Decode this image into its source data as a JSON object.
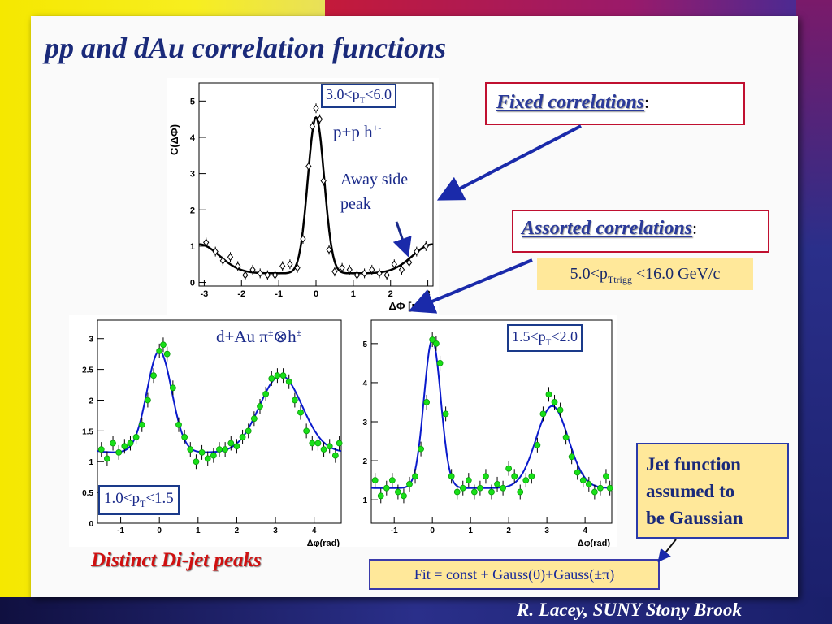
{
  "slide": {
    "title": "pp and dAu correlation functions",
    "fixed_label": "Fixed correlations",
    "fixed_colon": ":",
    "assorted_label": "Assorted correlations",
    "assorted_colon": ":",
    "assorted_range": "5.0<p",
    "assorted_range_sub": "Ttrigg",
    "assorted_range_tail": " <16.0 GeV/c",
    "jet_box": [
      "Jet function",
      "assumed to",
      "be Gaussian"
    ],
    "fit_box": "Fit = const + Gauss(0)+Gauss(±π)",
    "dijet": "Distinct Di-jet peaks",
    "author": "R. Lacey, SUNY  Stony Brook",
    "colors": {
      "title": "#1a2a7a",
      "red": "#c01030",
      "yellow_box": "#ffe89a",
      "fit_blue": "#0a1acc",
      "data_green": "#18e018"
    }
  },
  "chart_data": [
    {
      "id": "pp",
      "type": "scatter",
      "ylabel": "C(ΔΦ)",
      "xlabel": "ΔΦ  [rad]",
      "xlim": [
        -3.14,
        3.14
      ],
      "ylim": [
        -0.1,
        5.5
      ],
      "xticks": [
        -3,
        -2,
        -1,
        0,
        1,
        2,
        3
      ],
      "yticks": [
        0,
        1,
        2,
        3,
        4,
        5
      ],
      "range_label": "3.0<p",
      "range_label_sub": "T",
      "range_label_tail": "<6.0",
      "system_label": "p+p  h",
      "system_label_sup": "+-",
      "annotation": [
        "Away side",
        "peak"
      ],
      "fit": {
        "const": 0.25,
        "near_amp": 4.3,
        "near_sigma": 0.22,
        "away_amp": 0.8,
        "away_sigma": 0.55
      },
      "points": {
        "x": [
          -2.95,
          -2.7,
          -2.5,
          -2.3,
          -2.1,
          -1.9,
          -1.7,
          -1.5,
          -1.3,
          -1.1,
          -0.9,
          -0.7,
          -0.5,
          -0.35,
          -0.2,
          -0.1,
          0.0,
          0.1,
          0.2,
          0.35,
          0.5,
          0.7,
          0.9,
          1.1,
          1.3,
          1.5,
          1.7,
          1.9,
          2.1,
          2.3,
          2.5,
          2.7,
          2.95
        ],
        "y": [
          1.1,
          0.85,
          0.6,
          0.7,
          0.45,
          0.2,
          0.35,
          0.25,
          0.2,
          0.2,
          0.45,
          0.5,
          0.4,
          1.2,
          3.2,
          4.3,
          4.8,
          4.5,
          2.8,
          0.9,
          0.3,
          0.4,
          0.35,
          0.2,
          0.25,
          0.35,
          0.25,
          0.2,
          0.5,
          0.35,
          0.55,
          0.85,
          1.0
        ]
      }
    },
    {
      "id": "dau",
      "type": "scatter",
      "xlabel": "Δφ(rad)",
      "xlim": [
        -1.6,
        4.7
      ],
      "ylim": [
        0,
        3.3
      ],
      "xticks": [
        -1,
        0,
        1,
        2,
        3,
        4
      ],
      "yticks": [
        0,
        0.5,
        1,
        1.5,
        2,
        2.5,
        3
      ],
      "range_label": "1.0<p",
      "range_label_sub": "T",
      "range_label_tail": "<1.5",
      "system_label": "d+Au π",
      "system_label_sup": "±",
      "system_label_mid": "⊗h",
      "system_label_sup2": "±",
      "fit": {
        "const": 1.15,
        "near_amp": 1.65,
        "near_sigma": 0.32,
        "away_amp": 1.25,
        "away_sigma": 0.55,
        "away_mu": 3.14
      },
      "points": {
        "x": [
          -1.5,
          -1.35,
          -1.2,
          -1.05,
          -0.9,
          -0.75,
          -0.6,
          -0.45,
          -0.3,
          -0.15,
          0.0,
          0.1,
          0.2,
          0.35,
          0.5,
          0.65,
          0.8,
          0.95,
          1.1,
          1.25,
          1.4,
          1.55,
          1.7,
          1.85,
          2.0,
          2.15,
          2.3,
          2.45,
          2.6,
          2.75,
          2.9,
          3.05,
          3.2,
          3.35,
          3.5,
          3.65,
          3.8,
          3.95,
          4.1,
          4.25,
          4.4,
          4.55,
          4.65
        ],
        "y": [
          1.2,
          1.05,
          1.3,
          1.15,
          1.25,
          1.3,
          1.4,
          1.6,
          2.0,
          2.4,
          2.8,
          2.9,
          2.75,
          2.2,
          1.6,
          1.4,
          1.2,
          1.0,
          1.15,
          1.05,
          1.1,
          1.2,
          1.2,
          1.3,
          1.25,
          1.4,
          1.5,
          1.7,
          1.9,
          2.1,
          2.35,
          2.4,
          2.4,
          2.3,
          2.0,
          1.8,
          1.5,
          1.3,
          1.3,
          1.2,
          1.25,
          1.1,
          1.3
        ]
      }
    },
    {
      "id": "dau2",
      "type": "scatter",
      "xlabel": "Δφ(rad)",
      "xlim": [
        -1.6,
        4.7
      ],
      "ylim": [
        0.4,
        5.6
      ],
      "xticks": [
        -1,
        0,
        1,
        2,
        3,
        4
      ],
      "yticks": [
        1,
        2,
        3,
        4,
        5
      ],
      "range_label": "1.5<p",
      "range_label_sub": "T",
      "range_label_tail": "<2.0",
      "fit": {
        "const": 1.3,
        "near_amp": 3.8,
        "near_sigma": 0.22,
        "away_amp": 2.1,
        "away_sigma": 0.42,
        "away_mu": 3.14
      },
      "points": {
        "x": [
          -1.5,
          -1.35,
          -1.2,
          -1.05,
          -0.9,
          -0.75,
          -0.6,
          -0.45,
          -0.3,
          -0.15,
          0.0,
          0.1,
          0.2,
          0.35,
          0.5,
          0.65,
          0.8,
          0.95,
          1.1,
          1.25,
          1.4,
          1.55,
          1.7,
          1.85,
          2.0,
          2.15,
          2.3,
          2.45,
          2.6,
          2.75,
          2.9,
          3.05,
          3.2,
          3.35,
          3.5,
          3.65,
          3.8,
          3.95,
          4.1,
          4.25,
          4.4,
          4.55,
          4.65
        ],
        "y": [
          1.5,
          1.1,
          1.3,
          1.5,
          1.2,
          1.1,
          1.4,
          1.6,
          2.3,
          3.5,
          5.1,
          5.0,
          4.5,
          3.2,
          1.6,
          1.2,
          1.3,
          1.5,
          1.2,
          1.3,
          1.6,
          1.2,
          1.4,
          1.3,
          1.8,
          1.6,
          1.2,
          1.5,
          1.6,
          2.4,
          3.2,
          3.7,
          3.5,
          3.3,
          2.6,
          2.1,
          1.7,
          1.5,
          1.4,
          1.2,
          1.3,
          1.6,
          1.3
        ]
      }
    }
  ]
}
